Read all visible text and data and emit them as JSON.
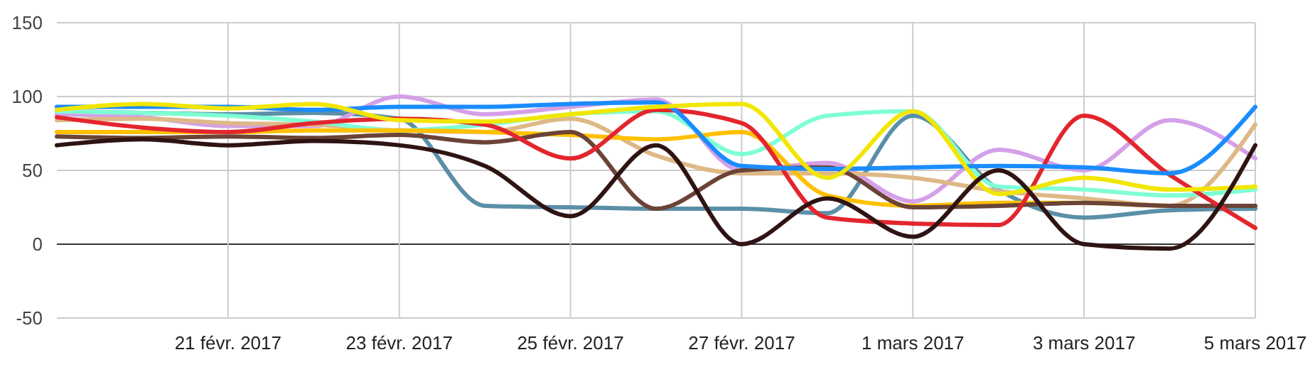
{
  "chart_data": {
    "type": "line",
    "x": [
      "2017-02-19",
      "2017-02-20",
      "2017-02-21",
      "2017-02-22",
      "2017-02-23",
      "2017-02-24",
      "2017-02-25",
      "2017-02-26",
      "2017-02-27",
      "2017-02-28",
      "2017-03-01",
      "2017-03-02",
      "2017-03-03",
      "2017-03-04",
      "2017-03-05"
    ],
    "xlim": [
      "2017-02-19",
      "2017-03-05"
    ],
    "xticks": [
      {
        "value": "2017-02-21",
        "label": "21 févr. 2017"
      },
      {
        "value": "2017-02-23",
        "label": "23 févr. 2017"
      },
      {
        "value": "2017-02-25",
        "label": "25 févr. 2017"
      },
      {
        "value": "2017-02-27",
        "label": "27 févr. 2017"
      },
      {
        "value": "2017-03-01",
        "label": "1 mars 2017"
      },
      {
        "value": "2017-03-03",
        "label": "3 mars 2017"
      },
      {
        "value": "2017-03-05",
        "label": "5 mars 2017"
      }
    ],
    "ylim": [
      -50,
      150
    ],
    "yticks": [
      -50,
      0,
      50,
      100,
      150
    ],
    "grid": true,
    "marker": "none",
    "line_style": "solid",
    "series": [
      {
        "color": "#5b8fa8",
        "values": [
          90,
          89,
          88,
          89,
          85,
          26,
          25,
          24,
          24,
          21,
          87,
          37,
          18,
          23,
          24
        ]
      },
      {
        "color": "#d4a0e8",
        "values": [
          88,
          86,
          80,
          80,
          100,
          88,
          93,
          98,
          50,
          55,
          29,
          64,
          50,
          84,
          58
        ]
      },
      {
        "color": "#deb887",
        "values": [
          84,
          85,
          82,
          81,
          77,
          76,
          85,
          60,
          48,
          48,
          45,
          36,
          31,
          26,
          81
        ]
      },
      {
        "color": "#7fffd4",
        "values": [
          90,
          89,
          87,
          83,
          77,
          81,
          88,
          90,
          61,
          87,
          90,
          39,
          37,
          33,
          37
        ]
      },
      {
        "color": "#ffc000",
        "values": [
          76,
          76,
          76,
          77,
          77,
          76,
          74,
          71,
          76,
          33,
          26,
          28,
          28,
          26,
          26
        ]
      },
      {
        "color": "#6b4337",
        "values": [
          73,
          72,
          73,
          72,
          74,
          69,
          76,
          24,
          50,
          52,
          25,
          26,
          28,
          26,
          26
        ]
      },
      {
        "color": "#e3262e",
        "values": [
          86,
          79,
          76,
          82,
          85,
          81,
          58,
          91,
          82,
          18,
          14,
          13,
          87,
          47,
          11
        ]
      },
      {
        "color": "#1a8cff",
        "values": [
          93,
          93,
          93,
          91,
          93,
          93,
          95,
          96,
          53,
          51,
          52,
          53,
          52,
          48,
          93
        ]
      },
      {
        "color": "#f2e600",
        "values": [
          91,
          95,
          92,
          95,
          84,
          83,
          88,
          93,
          95,
          45,
          90,
          34,
          45,
          37,
          39
        ]
      },
      {
        "color": "#2f1313",
        "values": [
          67,
          71,
          67,
          70,
          67,
          53,
          19,
          67,
          0,
          31,
          5,
          50,
          0,
          -3,
          67
        ]
      }
    ]
  }
}
